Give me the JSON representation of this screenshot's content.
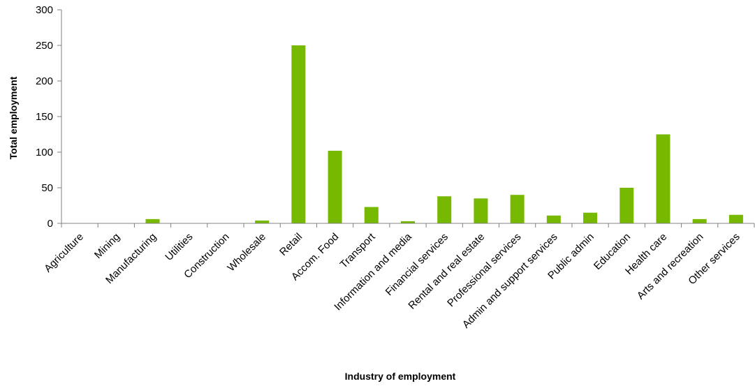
{
  "chart_data": {
    "type": "bar",
    "title": "",
    "xlabel": "Industry of employment",
    "ylabel": "Total employment",
    "ylim": [
      0,
      300
    ],
    "yticks": [
      0,
      50,
      100,
      150,
      200,
      250,
      300
    ],
    "grid": false,
    "legend": "none",
    "categories": [
      "Agriculture",
      "Mining",
      "Manufacturing",
      "Utilities",
      "Construction",
      "Wholesale",
      "Retail",
      "Accom. Food",
      "Transport",
      "Information and media",
      "Financial services",
      "Rental and real estate",
      "Professional services",
      "Admin and support services",
      "Public admin",
      "Education",
      "Health care",
      "Arts and recreation",
      "Other services"
    ],
    "values": [
      0,
      0,
      6,
      0,
      0,
      4,
      250,
      102,
      23,
      3,
      38,
      35,
      40,
      11,
      15,
      50,
      125,
      6,
      12
    ],
    "colors": {
      "bar": "#76b900",
      "axis": "#808080",
      "text": "#000000"
    }
  }
}
